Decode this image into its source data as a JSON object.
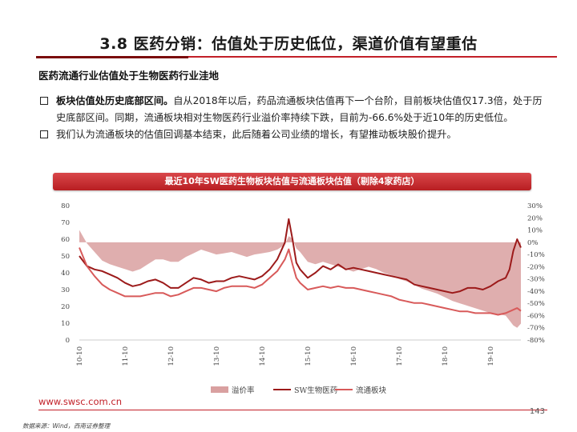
{
  "header": {
    "title": "3.8 医药分销：估值处于历史低位，渠道价值有望重估",
    "subhead": "医药流通行业估值处于生物医药行业洼地"
  },
  "bullets": [
    {
      "lead": "板块估值处历史底部区间。",
      "text": "自从2018年以后，药品流通板块估值再下一个台阶，目前板块估值仅17.3倍，处于历史底部区间。同期，流通板块相对生物医药行业溢价率持续下跌，目前为-66.6%处于近10年的历史低位。"
    },
    {
      "lead": "",
      "text": "我们认为流通板块的估值回调基本结束，此后随着公司业绩的增长，有望推动板块股价提升。"
    }
  ],
  "chart_data": {
    "type": "line",
    "title": "最近10年SW医药生物板块估值与流通板块估值（剔除4家药店）",
    "x_ticks": [
      "10-10",
      "11-10",
      "12-10",
      "13-10",
      "14-10",
      "15-10",
      "16-10",
      "17-10",
      "18-10",
      "19-10"
    ],
    "x": [
      "10-10",
      "10-12",
      "11-02",
      "11-04",
      "11-06",
      "11-08",
      "11-10",
      "11-12",
      "12-02",
      "12-04",
      "12-06",
      "12-08",
      "12-10",
      "12-12",
      "13-02",
      "13-04",
      "13-06",
      "13-08",
      "13-10",
      "13-12",
      "14-02",
      "14-04",
      "14-06",
      "14-08",
      "14-10",
      "14-12",
      "15-02",
      "15-04",
      "15-05",
      "15-06",
      "15-07",
      "15-08",
      "15-10",
      "15-12",
      "16-02",
      "16-04",
      "16-06",
      "16-08",
      "16-10",
      "16-12",
      "17-02",
      "17-04",
      "17-06",
      "17-08",
      "17-10",
      "17-12",
      "18-02",
      "18-04",
      "18-06",
      "18-08",
      "18-10",
      "18-12",
      "19-02",
      "19-04",
      "19-06",
      "19-08",
      "19-10",
      "19-12",
      "20-02",
      "20-03",
      "20-04",
      "20-05",
      "20-06"
    ],
    "y_left": {
      "ticks": [
        0,
        10,
        20,
        30,
        40,
        50,
        60,
        70,
        80
      ],
      "range": [
        0,
        80
      ]
    },
    "y_right": {
      "ticks": [
        "-80%",
        "-70%",
        "-60%",
        "-50%",
        "-40%",
        "-30%",
        "-20%",
        "-10%",
        "0%",
        "10%",
        "20%",
        "30%"
      ],
      "range": [
        -80,
        30
      ]
    },
    "series": [
      {
        "name": "溢价率",
        "axis": "right",
        "kind": "area",
        "color": "#d9a0a0",
        "values": [
          10,
          -1,
          -8,
          -15,
          -18,
          -20,
          -22,
          -24,
          -22,
          -18,
          -14,
          -14,
          -16,
          -16,
          -12,
          -9,
          -6,
          -8,
          -10,
          -9,
          -8,
          -10,
          -12,
          -10,
          -9,
          -8,
          -6,
          -2,
          5,
          3,
          -5,
          -8,
          -16,
          -18,
          -16,
          -18,
          -20,
          -22,
          -24,
          -22,
          -20,
          -22,
          -25,
          -27,
          -30,
          -32,
          -35,
          -38,
          -40,
          -42,
          -45,
          -48,
          -50,
          -52,
          -54,
          -56,
          -58,
          -59,
          -60,
          -64,
          -68,
          -70,
          -66.6
        ]
      },
      {
        "name": "SW生物医药",
        "axis": "left",
        "kind": "line",
        "color": "#9c1a1a",
        "values": [
          50,
          44,
          42,
          41,
          39,
          37,
          34,
          32,
          33,
          35,
          36,
          34,
          31,
          31,
          34,
          37,
          36,
          34,
          35,
          35,
          37,
          38,
          37,
          36,
          38,
          42,
          48,
          58,
          72,
          60,
          46,
          42,
          37,
          40,
          44,
          42,
          45,
          42,
          43,
          42,
          41,
          40,
          39,
          38,
          37,
          36,
          33,
          32,
          31,
          30,
          29,
          28,
          29,
          31,
          31,
          30,
          32,
          35,
          37,
          42,
          53,
          60,
          55
        ]
      },
      {
        "name": "流通板块",
        "axis": "left",
        "kind": "line",
        "color": "#d85a5a",
        "values": [
          55,
          44,
          38,
          33,
          30,
          28,
          26,
          26,
          26,
          27,
          28,
          28,
          26,
          27,
          29,
          31,
          31,
          30,
          29,
          31,
          32,
          32,
          32,
          31,
          33,
          37,
          41,
          48,
          54,
          45,
          37,
          34,
          30,
          31,
          32,
          31,
          32,
          31,
          31,
          30,
          29,
          28,
          27,
          26,
          24,
          23,
          22,
          22,
          21,
          20,
          19,
          18,
          17,
          17,
          16,
          16,
          16,
          15,
          16,
          17,
          18,
          19,
          17.3
        ]
      }
    ],
    "legend": {
      "position": "bottom",
      "labels": [
        "溢价率",
        "SW生物医药",
        "流通板块"
      ]
    },
    "grid": false
  },
  "footer": {
    "url": "www.swsc.com.cn",
    "page": "143",
    "source": "数据来源：Wind，西南证券整理"
  }
}
